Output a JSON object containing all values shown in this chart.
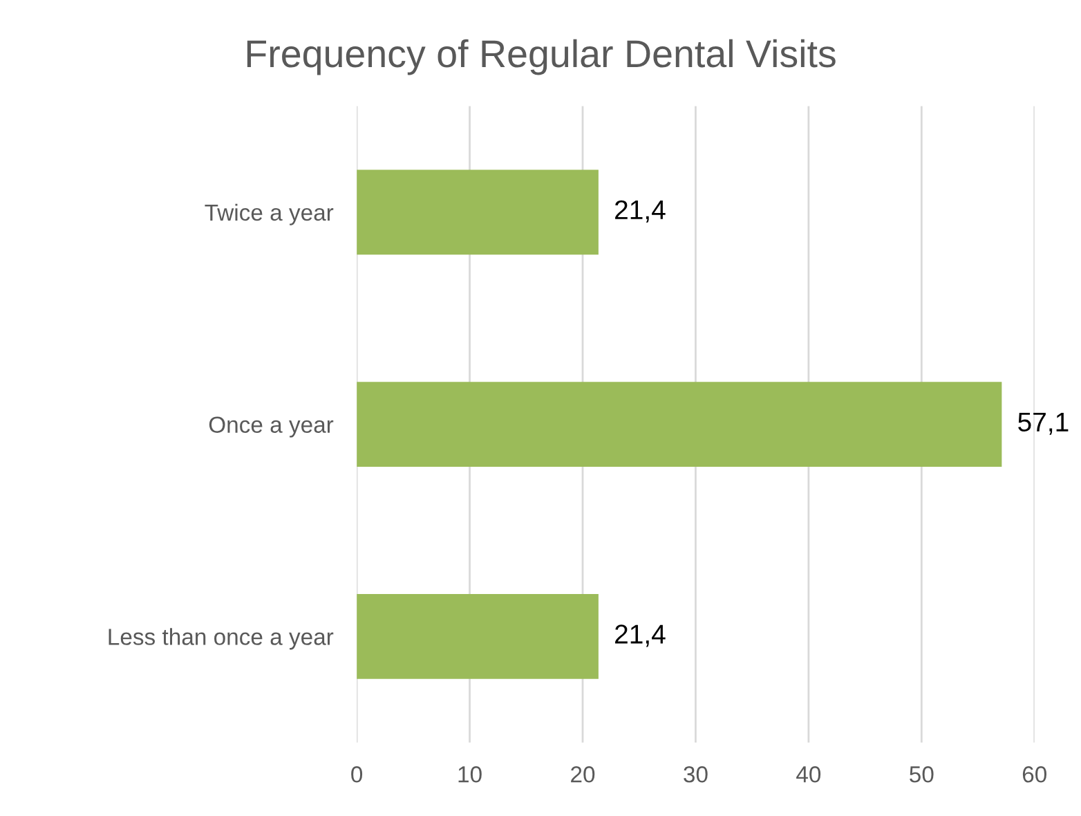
{
  "chart_data": {
    "type": "bar",
    "orientation": "horizontal",
    "title": "Frequency of Regular Dental Visits",
    "categories": [
      "Twice a year",
      "Once a year",
      "Less than once a year"
    ],
    "values": [
      21.4,
      57.1,
      21.4
    ],
    "value_labels": [
      "21,4",
      "57,1",
      "21,4"
    ],
    "color": "#9bbb59",
    "xlim": [
      0,
      60
    ],
    "xticks": [
      0,
      10,
      20,
      30,
      40,
      50,
      60
    ],
    "grid": "x",
    "legend": false
  }
}
